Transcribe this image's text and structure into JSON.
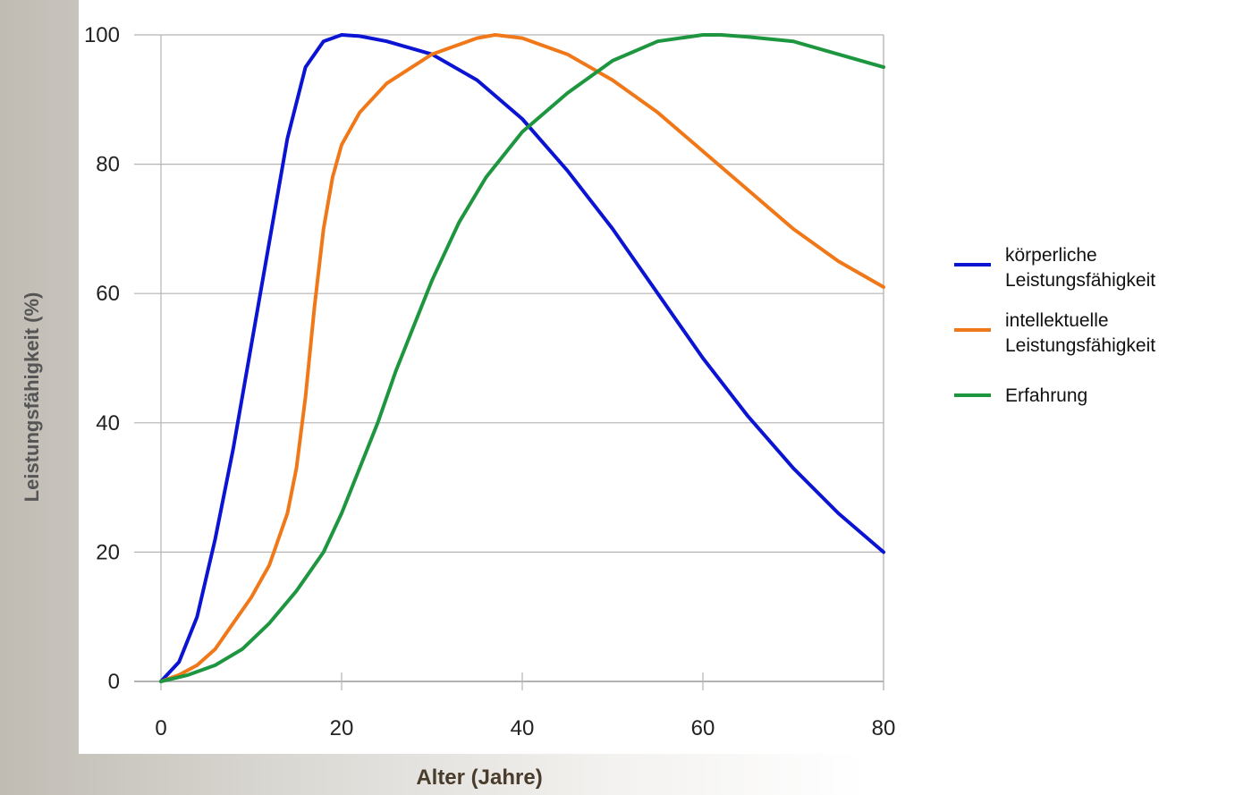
{
  "chart_data": {
    "type": "line",
    "xlabel": "Alter (Jahre)",
    "ylabel": "Leistungsfähigkeit (%)",
    "xlim": [
      0,
      80
    ],
    "ylim": [
      0,
      100
    ],
    "xticks": [
      0,
      20,
      40,
      60,
      80
    ],
    "yticks": [
      0,
      20,
      40,
      60,
      80,
      100
    ],
    "grid": "horizontal",
    "legend_position": "right",
    "series": [
      {
        "name_lines": [
          "körperliche",
          "Leistungsfähigkeit"
        ],
        "color": "#0a14d2",
        "points": [
          [
            0,
            0
          ],
          [
            2,
            3
          ],
          [
            4,
            10
          ],
          [
            6,
            22
          ],
          [
            8,
            36
          ],
          [
            10,
            52
          ],
          [
            12,
            68
          ],
          [
            14,
            84
          ],
          [
            16,
            95
          ],
          [
            18,
            99
          ],
          [
            20,
            100
          ],
          [
            22,
            99.8
          ],
          [
            25,
            99
          ],
          [
            30,
            97
          ],
          [
            35,
            93
          ],
          [
            40,
            87
          ],
          [
            45,
            79
          ],
          [
            50,
            70
          ],
          [
            55,
            60
          ],
          [
            60,
            50
          ],
          [
            65,
            41
          ],
          [
            70,
            33
          ],
          [
            75,
            26
          ],
          [
            80,
            20
          ]
        ]
      },
      {
        "name_lines": [
          "intellektuelle",
          "Leistungsfähigkeit"
        ],
        "color": "#f07818",
        "points": [
          [
            0,
            0
          ],
          [
            2,
            1
          ],
          [
            4,
            2.5
          ],
          [
            6,
            5
          ],
          [
            8,
            9
          ],
          [
            10,
            13
          ],
          [
            12,
            18
          ],
          [
            14,
            26
          ],
          [
            15,
            33
          ],
          [
            16,
            44
          ],
          [
            17,
            58
          ],
          [
            18,
            70
          ],
          [
            19,
            78
          ],
          [
            20,
            83
          ],
          [
            22,
            88
          ],
          [
            25,
            92.5
          ],
          [
            30,
            97
          ],
          [
            35,
            99.5
          ],
          [
            37,
            100
          ],
          [
            40,
            99.5
          ],
          [
            45,
            97
          ],
          [
            50,
            93
          ],
          [
            55,
            88
          ],
          [
            60,
            82
          ],
          [
            65,
            76
          ],
          [
            70,
            70
          ],
          [
            75,
            65
          ],
          [
            80,
            61
          ]
        ]
      },
      {
        "name_lines": [
          "Erfahrung"
        ],
        "color": "#1e9640",
        "points": [
          [
            0,
            0
          ],
          [
            3,
            1
          ],
          [
            6,
            2.5
          ],
          [
            9,
            5
          ],
          [
            12,
            9
          ],
          [
            15,
            14
          ],
          [
            18,
            20
          ],
          [
            20,
            26
          ],
          [
            22,
            33
          ],
          [
            24,
            40
          ],
          [
            26,
            48
          ],
          [
            28,
            55
          ],
          [
            30,
            62
          ],
          [
            33,
            71
          ],
          [
            36,
            78
          ],
          [
            40,
            85
          ],
          [
            45,
            91
          ],
          [
            50,
            96
          ],
          [
            55,
            99
          ],
          [
            60,
            100
          ],
          [
            62,
            100
          ],
          [
            65,
            99.7
          ],
          [
            70,
            99
          ],
          [
            75,
            97
          ],
          [
            80,
            95
          ]
        ]
      }
    ]
  }
}
